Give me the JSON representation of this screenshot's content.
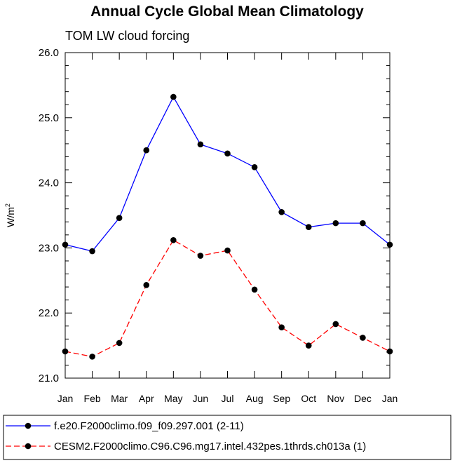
{
  "chart_data": {
    "type": "line",
    "title": "Annual Cycle Global Mean Climatology",
    "subtitle": "TOM LW cloud forcing",
    "ylabel": "W/m",
    "ylabel_sup": "2",
    "xlabel": "",
    "categories": [
      "Jan",
      "Feb",
      "Mar",
      "Apr",
      "May",
      "Jun",
      "Jul",
      "Aug",
      "Sep",
      "Oct",
      "Nov",
      "Dec",
      "Jan"
    ],
    "ylim": [
      21.0,
      26.0
    ],
    "yticks": [
      "21.0",
      "22.0",
      "23.0",
      "24.0",
      "25.0",
      "26.0"
    ],
    "series": [
      {
        "name": "f.e20.F2000climo.f09_f09.297.001 (2-11)",
        "color": "#0000ff",
        "dash": "solid",
        "values": [
          23.05,
          22.95,
          23.46,
          24.5,
          25.32,
          24.59,
          24.45,
          24.24,
          23.55,
          23.32,
          23.38,
          23.38,
          23.05
        ]
      },
      {
        "name": "CESM2.F2000climo.C96.C96.mg17.intel.432pes.1thrds.ch013a (1)",
        "color": "#ff0000",
        "dash": "dashed",
        "values": [
          21.41,
          21.33,
          21.54,
          22.43,
          23.12,
          22.88,
          22.96,
          22.36,
          21.78,
          21.5,
          21.83,
          21.62,
          21.41
        ]
      }
    ],
    "legend_position": "bottom",
    "grid": false
  }
}
